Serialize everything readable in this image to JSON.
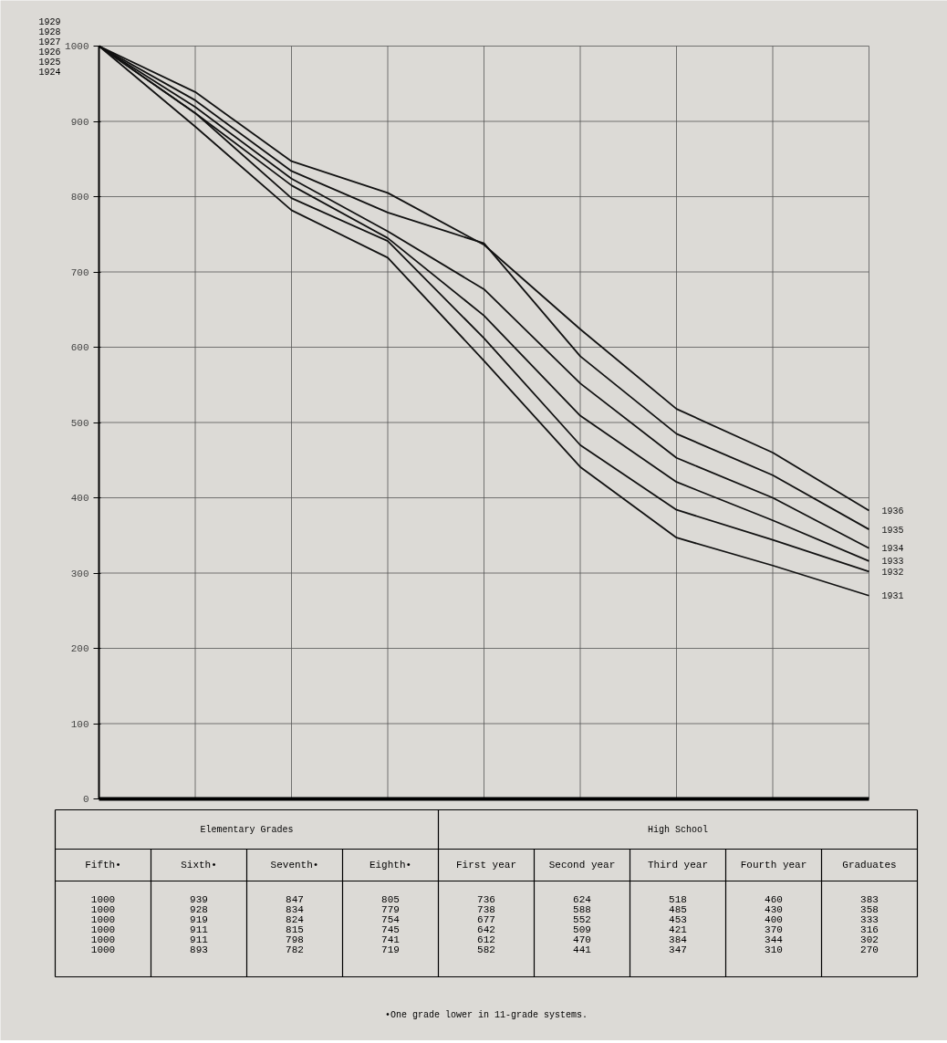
{
  "chart_data": {
    "type": "line",
    "categories": [
      "Fifth•",
      "Sixth•",
      "Seventh•",
      "Eighth•",
      "First year",
      "Second year",
      "Third year",
      "Fourth year",
      "Graduates"
    ],
    "series": [
      {
        "name": "1936",
        "color": "#111111",
        "values": [
          1000,
          939,
          847,
          805,
          736,
          624,
          518,
          460,
          383
        ]
      },
      {
        "name": "1935",
        "color": "#111111",
        "values": [
          1000,
          928,
          834,
          779,
          738,
          588,
          485,
          430,
          358
        ]
      },
      {
        "name": "1934",
        "color": "#111111",
        "values": [
          1000,
          919,
          824,
          754,
          677,
          552,
          453,
          400,
          333
        ]
      },
      {
        "name": "1933",
        "color": "#111111",
        "values": [
          1000,
          911,
          815,
          745,
          642,
          509,
          421,
          370,
          316
        ]
      },
      {
        "name": "1932",
        "color": "#111111",
        "values": [
          1000,
          911,
          798,
          741,
          612,
          470,
          384,
          344,
          302
        ]
      },
      {
        "name": "1931",
        "color": "#111111",
        "values": [
          1000,
          893,
          782,
          719,
          582,
          441,
          347,
          310,
          270
        ]
      }
    ],
    "ylim": [
      0,
      1000
    ],
    "yticks": [
      0,
      100,
      200,
      300,
      400,
      500,
      600,
      700,
      800,
      900,
      1000
    ],
    "grid": true,
    "legend": false,
    "marker": "none",
    "line_style": "solid",
    "data_labels": true,
    "annotations": [
      "Elementary Grades",
      "High School",
      "•One grade lower in 11-grade systems.",
      "1929",
      "1928",
      "1927",
      "1926",
      "1925",
      "1924"
    ]
  }
}
